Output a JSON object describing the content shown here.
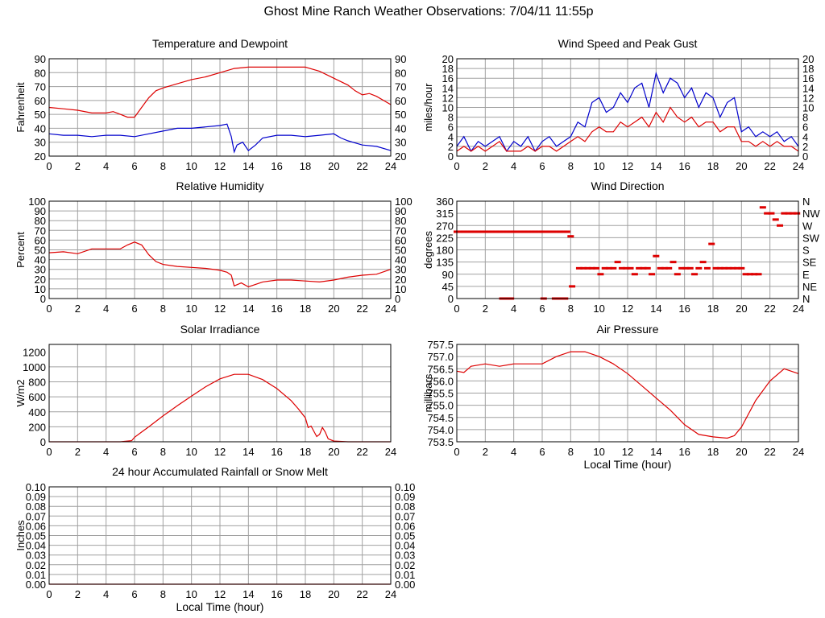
{
  "page": {
    "title": "Ghost Mine Ranch Weather Observations: 7/04/11 11:55p"
  },
  "colors": {
    "red": "#dd0000",
    "blue": "#0000cc",
    "grid": "#a0a0a0",
    "frame": "#000000"
  },
  "chart_data": [
    {
      "id": "temp",
      "type": "line",
      "title": "Temperature and Dewpoint",
      "ylabel": "Fahrenheit",
      "xlabel": "",
      "xlim": [
        0,
        24
      ],
      "ylim": [
        20,
        90
      ],
      "xticks": [
        0,
        2,
        4,
        6,
        8,
        10,
        12,
        14,
        16,
        18,
        20,
        22,
        24
      ],
      "yticks": [
        20,
        30,
        40,
        50,
        60,
        70,
        80,
        90
      ],
      "ytick_labels": [
        "20",
        "30",
        "40",
        "50",
        "60",
        "70",
        "80",
        "90"
      ],
      "right_ticks": [
        "20",
        "30",
        "40",
        "50",
        "60",
        "70",
        "80",
        "90"
      ],
      "series": [
        {
          "name": "Temperature",
          "color": "red",
          "x": [
            0,
            1,
            2,
            3,
            4,
            4.5,
            5,
            5.5,
            6,
            6.5,
            7,
            7.5,
            8,
            9,
            10,
            11,
            12,
            13,
            14,
            15,
            16,
            17,
            18,
            19,
            20,
            21,
            21.5,
            22,
            22.5,
            23,
            24
          ],
          "y": [
            55,
            54,
            53,
            51,
            51,
            52,
            50,
            48,
            48,
            55,
            62,
            67,
            69,
            72,
            75,
            77,
            80,
            83,
            84,
            84,
            84,
            84,
            84,
            81,
            76,
            71,
            67,
            64,
            65,
            63,
            57
          ]
        },
        {
          "name": "Dewpoint",
          "color": "blue",
          "x": [
            0,
            1,
            2,
            3,
            4,
            5,
            6,
            7,
            8,
            9,
            10,
            11,
            12,
            12.5,
            12.8,
            13,
            13.2,
            13.6,
            14,
            14.5,
            15,
            16,
            17,
            18,
            19,
            20,
            20.5,
            21,
            22,
            23,
            24
          ],
          "y": [
            36,
            35,
            35,
            34,
            35,
            35,
            34,
            36,
            38,
            40,
            40,
            41,
            42,
            43,
            34,
            23,
            28,
            30,
            24,
            28,
            33,
            35,
            35,
            34,
            35,
            36,
            33,
            31,
            28,
            27,
            24
          ]
        }
      ]
    },
    {
      "id": "wind",
      "type": "line",
      "title": "Wind Speed and Peak Gust",
      "ylabel": "miles/hour",
      "xlabel": "",
      "xlim": [
        0,
        24
      ],
      "ylim": [
        0,
        20
      ],
      "xticks": [
        0,
        2,
        4,
        6,
        8,
        10,
        12,
        14,
        16,
        18,
        20,
        22,
        24
      ],
      "yticks": [
        0,
        2,
        4,
        6,
        8,
        10,
        12,
        14,
        16,
        18,
        20
      ],
      "ytick_labels": [
        "0",
        "2",
        "4",
        "6",
        "8",
        "10",
        "12",
        "14",
        "16",
        "18",
        "20"
      ],
      "right_ticks": [
        "0",
        "2",
        "4",
        "6",
        "8",
        "10",
        "12",
        "14",
        "16",
        "18",
        "20"
      ],
      "series": [
        {
          "name": "Peak Gust",
          "color": "blue",
          "x": [
            0,
            0.5,
            1,
            1.5,
            2,
            2.5,
            3,
            3.5,
            4,
            4.5,
            5,
            5.5,
            6,
            6.5,
            7,
            7.5,
            8,
            8.5,
            9,
            9.5,
            10,
            10.5,
            11,
            11.5,
            12,
            12.5,
            13,
            13.5,
            14,
            14.5,
            15,
            15.5,
            16,
            16.5,
            17,
            17.5,
            18,
            18.5,
            19,
            19.5,
            20,
            20.5,
            21,
            21.5,
            22,
            22.5,
            23,
            23.5,
            24
          ],
          "y": [
            2,
            4,
            1,
            3,
            2,
            3,
            4,
            1,
            3,
            2,
            4,
            1,
            3,
            4,
            2,
            3,
            4,
            7,
            6,
            11,
            12,
            9,
            10,
            13,
            11,
            14,
            15,
            10,
            17,
            13,
            16,
            15,
            12,
            14,
            10,
            13,
            12,
            8,
            11,
            12,
            5,
            6,
            4,
            5,
            4,
            5,
            3,
            4,
            2
          ]
        },
        {
          "name": "Wind Speed",
          "color": "red",
          "x": [
            0,
            0.5,
            1,
            1.5,
            2,
            2.5,
            3,
            3.5,
            4,
            4.5,
            5,
            5.5,
            6,
            6.5,
            7,
            7.5,
            8,
            8.5,
            9,
            9.5,
            10,
            10.5,
            11,
            11.5,
            12,
            12.5,
            13,
            13.5,
            14,
            14.5,
            15,
            15.5,
            16,
            16.5,
            17,
            17.5,
            18,
            18.5,
            19,
            19.5,
            20,
            20.5,
            21,
            21.5,
            22,
            22.5,
            23,
            23.5,
            24
          ],
          "y": [
            1,
            2,
            1,
            2,
            1,
            2,
            3,
            1,
            1,
            1,
            2,
            1,
            2,
            2,
            1,
            2,
            3,
            4,
            3,
            5,
            6,
            5,
            5,
            7,
            6,
            7,
            8,
            6,
            9,
            7,
            10,
            8,
            7,
            8,
            6,
            7,
            7,
            5,
            6,
            6,
            3,
            3,
            2,
            3,
            2,
            3,
            2,
            2,
            1
          ]
        }
      ]
    },
    {
      "id": "rh",
      "type": "line",
      "title": "Relative Humidity",
      "ylabel": "Percent",
      "xlabel": "",
      "xlim": [
        0,
        24
      ],
      "ylim": [
        0,
        100
      ],
      "xticks": [
        0,
        2,
        4,
        6,
        8,
        10,
        12,
        14,
        16,
        18,
        20,
        22,
        24
      ],
      "yticks": [
        0,
        10,
        20,
        30,
        40,
        50,
        60,
        70,
        80,
        90,
        100
      ],
      "ytick_labels": [
        "0",
        "10",
        "20",
        "30",
        "40",
        "50",
        "60",
        "70",
        "80",
        "90",
        "100"
      ],
      "right_ticks": [
        "0",
        "10",
        "20",
        "30",
        "40",
        "50",
        "60",
        "70",
        "80",
        "90",
        "100"
      ],
      "series": [
        {
          "name": "Relative Humidity",
          "color": "red",
          "x": [
            0,
            1,
            2,
            3,
            4,
            5,
            5.5,
            6,
            6.5,
            7,
            7.5,
            8,
            9,
            10,
            11,
            12,
            12.5,
            12.8,
            13,
            13.5,
            14,
            15,
            16,
            17,
            18,
            19,
            20,
            21,
            22,
            23,
            24
          ],
          "y": [
            47,
            48,
            46,
            51,
            51,
            51,
            55,
            58,
            55,
            45,
            38,
            35,
            33,
            32,
            31,
            29,
            27,
            24,
            13,
            16,
            12,
            17,
            19,
            19,
            18,
            17,
            19,
            22,
            24,
            25,
            30
          ]
        }
      ]
    },
    {
      "id": "wdir",
      "type": "scatter",
      "title": "Wind Direction",
      "ylabel": "degrees",
      "xlabel": "",
      "xlim": [
        0,
        24
      ],
      "ylim": [
        0,
        360
      ],
      "xticks": [
        0,
        2,
        4,
        6,
        8,
        10,
        12,
        14,
        16,
        18,
        20,
        22,
        24
      ],
      "yticks": [
        0,
        45,
        90,
        135,
        180,
        225,
        270,
        315,
        360
      ],
      "ytick_labels": [
        "0",
        "45",
        "90",
        "135",
        "180",
        "225",
        "270",
        "315",
        "360"
      ],
      "right_ticks": [
        "N",
        "NE",
        "E",
        "SE",
        "S",
        "SW",
        "W",
        "NW",
        "N"
      ],
      "series": [
        {
          "name": "Wind Direction",
          "color": "red",
          "x": [
            0,
            0.25,
            0.5,
            0.75,
            1,
            1.25,
            1.5,
            1.75,
            2,
            2.25,
            2.5,
            2.75,
            3,
            3.25,
            3.5,
            3.75,
            4,
            4.25,
            4.5,
            4.75,
            5,
            5.25,
            5.5,
            5.75,
            6,
            6.25,
            6.5,
            6.75,
            7,
            7.25,
            7.5,
            7.75,
            3.2,
            3.5,
            3.8,
            6.1,
            6.9,
            7.3,
            7.6,
            8,
            8.1,
            8.6,
            8.9,
            9.2,
            9.5,
            9.8,
            10.1,
            10.4,
            10.7,
            11,
            11.3,
            11.6,
            11.9,
            12.2,
            12.5,
            12.8,
            13.1,
            13.4,
            13.7,
            14,
            14.3,
            14.6,
            14.9,
            15.2,
            15.5,
            15.8,
            16.1,
            16.4,
            16.7,
            17,
            17.3,
            17.6,
            17.9,
            18.2,
            18.5,
            18.8,
            19.1,
            19.4,
            19.7,
            20,
            20.3,
            20.6,
            20.9,
            21.2,
            21.5,
            21.8,
            22.1,
            22.4,
            22.7,
            23,
            23.3,
            23.6,
            23.9
          ],
          "y": [
            247,
            247,
            247,
            247,
            247,
            247,
            247,
            247,
            247,
            247,
            247,
            247,
            247,
            247,
            247,
            247,
            247,
            247,
            247,
            247,
            247,
            247,
            247,
            247,
            247,
            247,
            247,
            247,
            247,
            247,
            247,
            247,
            0,
            0,
            0,
            0,
            0,
            0,
            0,
            230,
            45,
            112,
            112,
            112,
            112,
            112,
            90,
            112,
            112,
            112,
            135,
            112,
            112,
            112,
            90,
            112,
            112,
            112,
            90,
            157,
            112,
            112,
            112,
            135,
            90,
            112,
            112,
            112,
            90,
            112,
            135,
            112,
            202,
            112,
            112,
            112,
            112,
            112,
            112,
            112,
            90,
            90,
            90,
            90,
            337,
            315,
            315,
            292,
            270,
            315,
            315,
            315,
            315
          ]
        }
      ]
    },
    {
      "id": "solar",
      "type": "line",
      "title": "Solar Irradiance",
      "ylabel": "W/m2",
      "xlabel": "",
      "xlim": [
        0,
        24
      ],
      "ylim": [
        0,
        1300
      ],
      "xticks": [
        0,
        2,
        4,
        6,
        8,
        10,
        12,
        14,
        16,
        18,
        20,
        22,
        24
      ],
      "yticks": [
        0,
        200,
        400,
        600,
        800,
        1000,
        1200
      ],
      "ytick_labels": [
        "0",
        "200",
        "400",
        "600",
        "800",
        "1000",
        "1200"
      ],
      "right_ticks": [],
      "series": [
        {
          "name": "Solar Irradiance",
          "color": "red",
          "x": [
            0,
            5,
            5.8,
            6,
            6.5,
            7,
            8,
            9,
            10,
            11,
            12,
            13,
            14,
            15,
            16,
            17,
            17.5,
            18,
            18.2,
            18.4,
            18.6,
            18.8,
            19,
            19.2,
            19.4,
            19.6,
            20,
            21,
            24
          ],
          "y": [
            0,
            0,
            15,
            60,
            130,
            200,
            345,
            480,
            610,
            735,
            840,
            900,
            900,
            830,
            710,
            550,
            440,
            320,
            190,
            210,
            140,
            70,
            100,
            190,
            130,
            40,
            10,
            0,
            0
          ]
        }
      ]
    },
    {
      "id": "press",
      "type": "line",
      "title": "Air Pressure",
      "ylabel": "millibars",
      "xlabel": "Local Time (hour)",
      "xlim": [
        0,
        24
      ],
      "ylim": [
        753.5,
        757.5
      ],
      "xticks": [
        0,
        2,
        4,
        6,
        8,
        10,
        12,
        14,
        16,
        18,
        20,
        22,
        24
      ],
      "yticks": [
        753.5,
        754,
        754.5,
        755,
        755.5,
        756,
        756.5,
        757,
        757.5
      ],
      "ytick_labels": [
        "753.5",
        "754.0",
        "754.5",
        "755.0",
        "755.5",
        "756.0",
        "756.5",
        "757.0",
        "757.5"
      ],
      "right_ticks": [],
      "series": [
        {
          "name": "Air Pressure",
          "color": "red",
          "x": [
            0,
            0.5,
            1,
            2,
            3,
            4,
            5,
            6,
            7,
            8,
            9,
            10,
            11,
            12,
            13,
            14,
            15,
            16,
            17,
            18,
            19,
            19.5,
            20,
            21,
            22,
            23,
            24
          ],
          "y": [
            756.4,
            756.35,
            756.6,
            756.7,
            756.6,
            756.7,
            756.7,
            756.7,
            757.0,
            757.2,
            757.2,
            757.0,
            756.7,
            756.3,
            755.8,
            755.3,
            754.8,
            754.2,
            753.8,
            753.7,
            753.65,
            753.75,
            754.1,
            755.2,
            756.0,
            756.5,
            756.3
          ]
        }
      ]
    },
    {
      "id": "rain",
      "type": "line",
      "title": "24 hour Accumulated Rainfall or Snow Melt",
      "ylabel": "Inches",
      "xlabel": "Local Time (hour)",
      "xlim": [
        0,
        24
      ],
      "ylim": [
        0,
        0.1
      ],
      "xticks": [
        0,
        2,
        4,
        6,
        8,
        10,
        12,
        14,
        16,
        18,
        20,
        22,
        24
      ],
      "yticks": [
        0,
        0.01,
        0.02,
        0.03,
        0.04,
        0.05,
        0.06,
        0.07,
        0.08,
        0.09,
        0.1
      ],
      "ytick_labels": [
        "0.00",
        "0.01",
        "0.02",
        "0.03",
        "0.04",
        "0.05",
        "0.06",
        "0.07",
        "0.08",
        "0.09",
        "0.10"
      ],
      "right_ticks": [
        "0.00",
        "0.01",
        "0.02",
        "0.03",
        "0.04",
        "0.05",
        "0.06",
        "0.07",
        "0.08",
        "0.09",
        "0.10"
      ],
      "series": [
        {
          "name": "Rainfall",
          "color": "red",
          "x": [
            0,
            24
          ],
          "y": [
            0,
            0
          ]
        }
      ]
    }
  ]
}
